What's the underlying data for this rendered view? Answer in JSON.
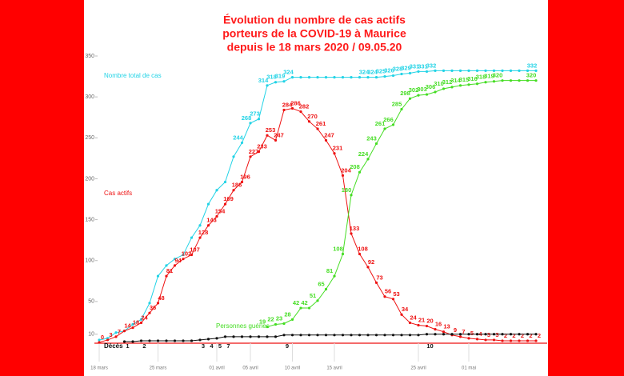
{
  "chart_data": {
    "type": "line",
    "title": [
      "Évolution du nombre de cas actifs",
      "porteurs de la COVID-19 à Maurice",
      "depuis le 18 mars 2020  /  09.05.20"
    ],
    "categories": [
      "18 mars",
      null,
      null,
      null,
      null,
      null,
      null,
      "25 mars",
      null,
      null,
      null,
      null,
      null,
      null,
      "01 avril",
      null,
      null,
      null,
      "05 avril",
      null,
      null,
      null,
      null,
      "10 avril",
      null,
      null,
      null,
      null,
      "15 avril",
      null,
      null,
      null,
      null,
      null,
      null,
      null,
      null,
      null,
      "25 avril",
      null,
      null,
      null,
      null,
      null,
      "01 mai",
      null,
      null,
      null,
      null,
      null,
      null,
      null,
      null
    ],
    "ylim": [
      0,
      350
    ],
    "yticks": [
      10,
      50,
      100,
      150,
      200,
      250,
      300,
      350
    ],
    "series": [
      {
        "name": "Nombre total de cas",
        "color": "#22d3e6",
        "values": [
          3,
          5,
          12,
          14,
          22,
          28,
          48,
          81,
          94,
          102,
          107,
          128,
          143,
          169,
          186,
          196,
          227,
          244,
          268,
          273,
          314,
          318,
          319,
          324,
          324,
          324,
          324,
          324,
          324,
          324,
          324,
          324,
          324,
          324,
          325,
          326,
          328,
          329,
          331,
          331,
          332,
          332,
          332,
          332,
          332,
          332,
          332,
          332,
          332,
          332,
          332,
          332,
          332
        ],
        "value_labels": [
          null,
          null,
          null,
          null,
          null,
          null,
          null,
          null,
          null,
          null,
          null,
          null,
          null,
          null,
          null,
          null,
          null,
          "244",
          "268",
          "273",
          "314",
          "318",
          "319",
          "324",
          null,
          null,
          null,
          null,
          null,
          null,
          null,
          null,
          "324",
          "324",
          "325",
          "326",
          "328",
          "329",
          "331",
          "331",
          "332",
          null,
          null,
          null,
          null,
          null,
          null,
          null,
          null,
          null,
          null,
          null,
          "332"
        ]
      },
      {
        "name": "Cas actifs",
        "color": "#ee1111",
        "values": [
          0,
          3,
          7,
          14,
          18,
          24,
          36,
          48,
          81,
          94,
          102,
          107,
          128,
          143,
          154,
          169,
          186,
          196,
          227,
          233,
          253,
          247,
          284,
          286,
          282,
          270,
          261,
          247,
          231,
          204,
          133,
          108,
          92,
          73,
          56,
          53,
          34,
          24,
          21,
          20,
          16,
          13,
          9,
          7,
          5,
          4,
          3,
          3,
          2,
          2,
          2,
          2,
          2
        ]
      },
      {
        "name": "Personnes guéries",
        "color": "#44dd22",
        "values": [
          null,
          null,
          null,
          null,
          null,
          null,
          null,
          null,
          null,
          null,
          null,
          null,
          null,
          null,
          null,
          null,
          null,
          null,
          null,
          null,
          19,
          22,
          23,
          28,
          42,
          42,
          51,
          65,
          81,
          108,
          180,
          208,
          224,
          243,
          261,
          266,
          285,
          298,
          302,
          303,
          306,
          310,
          312,
          314,
          315,
          316,
          318,
          319,
          320,
          320,
          320,
          320,
          320
        ],
        "value_labels": [
          null,
          null,
          null,
          null,
          null,
          null,
          null,
          null,
          null,
          null,
          null,
          null,
          null,
          null,
          null,
          null,
          null,
          null,
          null,
          null,
          "19",
          "22",
          "23",
          "28",
          "42",
          "42",
          "51",
          "65",
          "81",
          "108",
          "180",
          "208",
          "224",
          "243",
          "261",
          "266",
          "285",
          "298",
          "302",
          "303",
          "306",
          "310",
          "312",
          "314",
          "315",
          "316",
          "318",
          "319",
          "320",
          null,
          null,
          null,
          "320"
        ]
      },
      {
        "name": "Décès",
        "color": "#111111",
        "values": [
          null,
          null,
          null,
          1,
          1,
          2,
          2,
          2,
          2,
          2,
          2,
          2,
          3,
          4,
          5,
          7,
          7,
          7,
          7,
          7,
          7,
          7,
          9,
          9,
          9,
          9,
          9,
          9,
          9,
          9,
          9,
          9,
          9,
          9,
          9,
          9,
          9,
          9,
          9,
          10,
          10,
          10,
          10,
          10,
          10,
          10,
          10,
          10,
          10,
          10,
          10,
          10,
          10
        ],
        "value_labels": [
          null,
          null,
          null,
          "1",
          null,
          "2",
          null,
          null,
          null,
          null,
          null,
          null,
          "3",
          "4",
          "5",
          "7",
          null,
          null,
          null,
          null,
          null,
          null,
          "9",
          null,
          null,
          null,
          null,
          null,
          null,
          null,
          null,
          null,
          null,
          null,
          null,
          null,
          null,
          null,
          null,
          "10",
          null,
          null,
          null,
          null,
          null,
          null,
          null,
          null,
          null,
          null,
          null,
          null,
          null
        ]
      }
    ]
  }
}
